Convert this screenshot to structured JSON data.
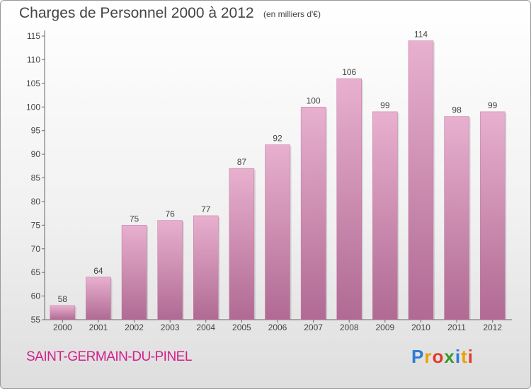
{
  "header": {
    "title": "Charges de Personnel 2000 à 2012",
    "subtitle": "(en milliers d'€)"
  },
  "footer": {
    "commune": "SAINT-GERMAIN-DU-PINEL",
    "logo": [
      "P",
      "r",
      "o",
      "x",
      "i",
      "t",
      "i"
    ],
    "logo_colors": [
      "#2b7bd6",
      "#f0a000",
      "#e23a2a",
      "#3a9a2a",
      "#2b7bd6",
      "#f0a000",
      "#e23a2a"
    ]
  },
  "colors": {
    "bar": "#d58fb6",
    "bar_light": "#e8b0cf",
    "bar_dark": "#b06a93",
    "title": "#444444",
    "commune": "#d1208b"
  },
  "chart_data": {
    "type": "bar",
    "categories": [
      "2000",
      "2001",
      "2002",
      "2003",
      "2004",
      "2005",
      "2006",
      "2007",
      "2008",
      "2009",
      "2010",
      "2011",
      "2012"
    ],
    "values": [
      58,
      64,
      75,
      76,
      77,
      87,
      92,
      100,
      106,
      99,
      114,
      98,
      99
    ],
    "title": "Charges de Personnel 2000 à 2012",
    "subtitle": "(en milliers d'€)",
    "xlabel": "",
    "ylabel": "",
    "ylim": [
      55,
      115
    ],
    "yticks": [
      55,
      60,
      65,
      70,
      75,
      80,
      85,
      90,
      95,
      100,
      105,
      110,
      115
    ],
    "grid": false,
    "data_labels": true
  }
}
